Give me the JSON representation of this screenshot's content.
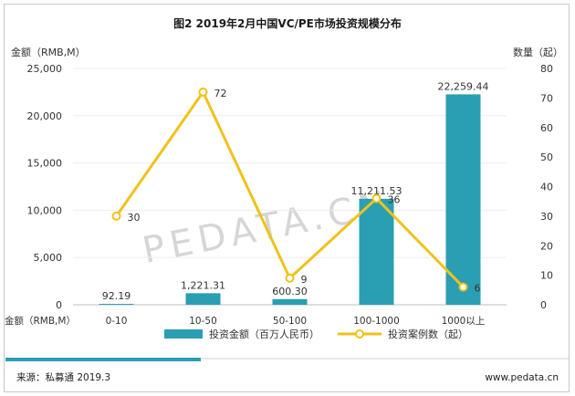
{
  "chart_data": {
    "type": "bar+line",
    "title": "图2 2019年2月中国VC/PE市场投资规模分布",
    "categories": [
      "0-10",
      "10-50",
      "50-100",
      "100-1000",
      "1000以上"
    ],
    "y_left_label_top": "金额（RMB,M）",
    "y_left_label_bottom": "金额（RMB,M）",
    "y_right_label": "数量（起）",
    "y_left_ticks": [
      "0",
      "5,000",
      "10,000",
      "15,000",
      "20,000",
      "25,000"
    ],
    "y_right_ticks": [
      "0",
      "10",
      "20",
      "30",
      "40",
      "50",
      "60",
      "70",
      "80"
    ],
    "ylim_left": [
      0,
      25000
    ],
    "ylim_right": [
      0,
      80
    ],
    "series": [
      {
        "name": "投资金额（百万人民币）",
        "type": "bar",
        "axis": "left",
        "color": "#2a9fb3",
        "values": [
          92.19,
          1221.31,
          600.3,
          11211.53,
          22259.44
        ],
        "labels": [
          "92.19",
          "1,221.31",
          "600.30",
          "11,211.53",
          "22,259.44"
        ]
      },
      {
        "name": "投资案例数（起）",
        "type": "line",
        "axis": "right",
        "color": "#f0c21a",
        "values": [
          30,
          72,
          9,
          36,
          6
        ],
        "labels": [
          "30",
          "72",
          "9",
          "36",
          "6"
        ]
      }
    ],
    "legend_position": "bottom",
    "watermark": "PEDATA.CN",
    "footer_source": "来源：私募通 2019.3",
    "footer_url": "www.pedata.cn"
  }
}
